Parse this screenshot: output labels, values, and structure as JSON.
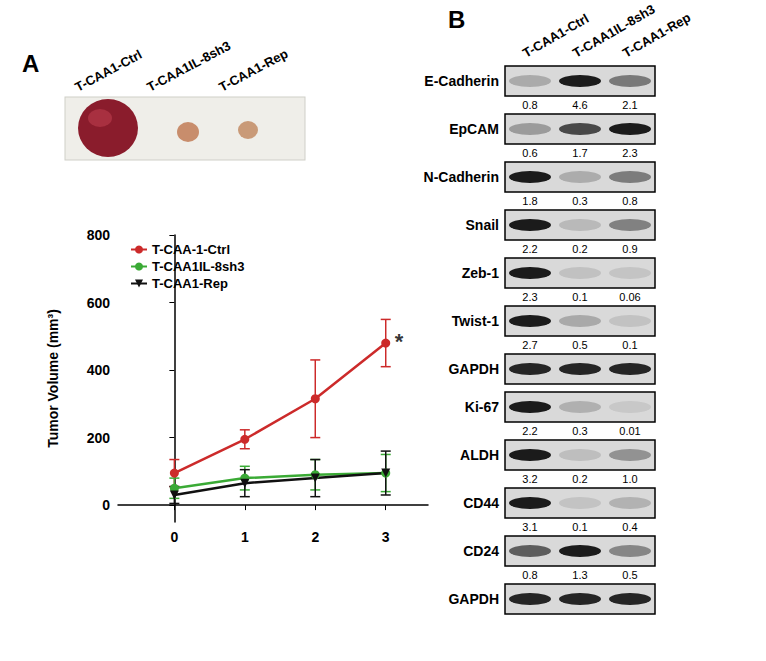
{
  "panel_labels": [
    "A",
    "B"
  ],
  "photo": {
    "labels": [
      "T-CAA1-Ctrl",
      "T-CAA1IL-8sh3",
      "T-CAA1-Rep"
    ]
  },
  "chart_data": {
    "type": "line",
    "y_label": "Tumor Volume (mm³)",
    "x": [
      0,
      1,
      2,
      3
    ],
    "xlim": [
      -0.8,
      3.6
    ],
    "xticks": [
      0,
      1,
      2,
      3
    ],
    "ylim": [
      -50,
      800
    ],
    "yticks": [
      0,
      200,
      400,
      600,
      800
    ],
    "grid": false,
    "legend": "upper left",
    "series": [
      {
        "name": "T-CAA-1-Ctrl",
        "color": "#cc2a2a",
        "marker": "circle",
        "values": [
          95,
          195,
          315,
          480
        ],
        "errors": [
          40,
          28,
          115,
          70
        ]
      },
      {
        "name": "T-CAA1IL-8sh3",
        "color": "#3aaa35",
        "marker": "circle",
        "values": [
          50,
          80,
          90,
          95
        ],
        "errors": [
          30,
          35,
          45,
          55
        ]
      },
      {
        "name": "T-CAA1-Rep",
        "color": "#111111",
        "marker": "triangle_down",
        "values": [
          30,
          65,
          80,
          95
        ],
        "errors": [
          25,
          40,
          55,
          65
        ]
      }
    ],
    "annotations": [
      {
        "text": "*",
        "x": 3,
        "y": 480
      }
    ]
  },
  "blot": {
    "lanes": [
      "T-CAA1-Ctrl",
      "T-CAA1IL-8sh3",
      "T-CAA1-Rep"
    ],
    "rows": [
      {
        "label": "E-Cadherin",
        "values": [
          "0.8",
          "4.6",
          "2.1"
        ]
      },
      {
        "label": "EpCAM",
        "values": [
          "0.6",
          "1.7",
          "2.3"
        ]
      },
      {
        "label": "N-Cadherin",
        "values": [
          "1.8",
          "0.3",
          "0.8"
        ]
      },
      {
        "label": "Snail",
        "values": [
          "2.2",
          "0.2",
          "0.9"
        ]
      },
      {
        "label": "Zeb-1",
        "values": [
          "2.3",
          "0.1",
          "0.06"
        ]
      },
      {
        "label": "Twist-1",
        "values": [
          "2.7",
          "0.5",
          "0.1"
        ]
      },
      {
        "label": "GAPDH"
      },
      {
        "label": "Ki-67",
        "values": [
          "2.2",
          "0.3",
          "0.01"
        ]
      },
      {
        "label": "ALDH",
        "values": [
          "3.2",
          "0.2",
          "1.0"
        ]
      },
      {
        "label": "CD44",
        "values": [
          "3.1",
          "0.1",
          "0.4"
        ]
      },
      {
        "label": "CD24",
        "values": [
          "0.8",
          "1.3",
          "0.5"
        ]
      },
      {
        "label": "GAPDH"
      }
    ]
  }
}
